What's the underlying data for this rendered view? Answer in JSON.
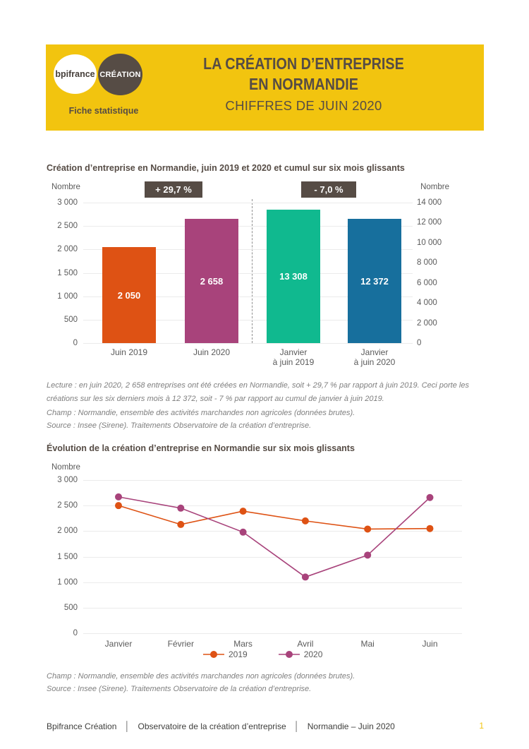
{
  "banner": {
    "bg_color": "#F2C40F",
    "dark_color": "#564C45",
    "logo_bpifrance": "bpifrance",
    "logo_creation": "CRÉATION",
    "tagline": "Fiche statistique",
    "title_line1": "LA CRÉATION D’ENTREPRISE",
    "title_line2": "EN NORMANDIE",
    "subtitle": "CHIFFRES DE JUIN 2020"
  },
  "section1": {
    "title": "Création d’entreprise en Normandie, juin 2019 et 2020 et cumul sur six mois glissants",
    "axis_label_left": "Nombre",
    "axis_label_right": "Nombre",
    "badge_left": "+ 29,7 %",
    "badge_right": "- 7,0 %",
    "notes": {
      "lecture": "Lecture : en juin 2020, 2 658 entreprises ont été créées en Normandie, soit + 29,7 % par rapport à juin 2019. Ceci porte les créations sur les six derniers mois à 12 372, soit - 7 % par rapport au cumul de janvier à juin 2019.",
      "champ": "Champ : Normandie, ensemble des activités marchandes non agricoles (données brutes).",
      "source": "Source : Insee (Sirene). Traitements Observatoire de la création d’entreprise."
    }
  },
  "section2": {
    "title": "Évolution de la création d’entreprise en Normandie sur six mois glissants",
    "axis_label": "Nombre",
    "notes": {
      "champ": "Champ : Normandie, ensemble des activités marchandes non agricoles (données brutes).",
      "source": "Source : Insee (Sirene). Traitements Observatoire de la création d’entreprise."
    }
  },
  "footer": {
    "items": [
      "Bpifrance Création",
      "Observatoire de la création d’entreprise",
      "Normandie – Juin 2020"
    ],
    "separator": "│",
    "page_number": "1"
  },
  "chart_data": [
    {
      "type": "bar",
      "title": "Création d’entreprise en Normandie, juin 2019 et 2020 et cumul sur six mois glissants",
      "categories": [
        "Juin 2019",
        "Juin 2020",
        "Janvier à juin 2019",
        "Janvier à juin 2020"
      ],
      "categories_display": [
        "Juin 2019",
        "Juin 2020",
        "Janvier|à juin 2019",
        "Janvier|à juin 2020"
      ],
      "values": [
        2050,
        2658,
        13308,
        12372
      ],
      "value_labels": [
        "2 050",
        "2 658",
        "13 308",
        "12 372"
      ],
      "bar_colors": [
        "#DE5214",
        "#A8437B",
        "#10B98F",
        "#176F9D"
      ],
      "bar_axes": [
        "left",
        "left",
        "right",
        "right"
      ],
      "annotations": [
        "+ 29,7 %",
        "- 7,0 %"
      ],
      "left_axis": {
        "label": "Nombre",
        "min": 0,
        "max": 3000,
        "step": 500,
        "ticks": [
          "3 000",
          "2 500",
          "2 000",
          "1 500",
          "1 000",
          "500",
          "0"
        ]
      },
      "right_axis": {
        "label": "Nombre",
        "min": 0,
        "max": 14000,
        "step": 2000,
        "ticks": [
          "14 000",
          "12 000",
          "10 000",
          "8 000",
          "6 000",
          "4 000",
          "2 000",
          "0"
        ]
      },
      "grid": true
    },
    {
      "type": "line",
      "title": "Évolution de la création d’entreprise en Normandie sur six mois glissants",
      "categories": [
        "Janvier",
        "Février",
        "Mars",
        "Avril",
        "Mai",
        "Juin"
      ],
      "series": [
        {
          "name": "2019",
          "color": "#DE5214",
          "values": [
            2500,
            2130,
            2390,
            2200,
            2040,
            2050
          ]
        },
        {
          "name": "2020",
          "color": "#A8437B",
          "values": [
            2670,
            2450,
            1980,
            1100,
            1530,
            2658
          ]
        }
      ],
      "y_axis": {
        "label": "Nombre",
        "min": 0,
        "max": 3000,
        "step": 500,
        "ticks": [
          "3 000",
          "2 500",
          "2 000",
          "1 500",
          "1 000",
          "500",
          "0"
        ]
      },
      "grid": true,
      "legend_position": "bottom"
    }
  ]
}
